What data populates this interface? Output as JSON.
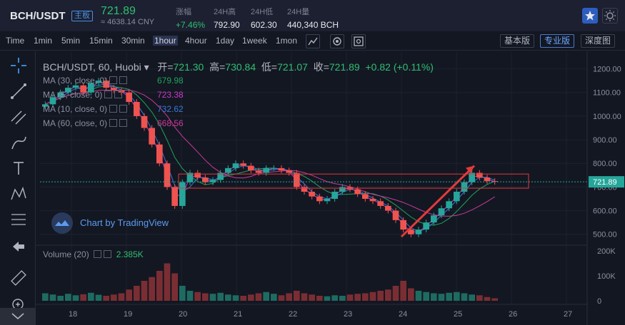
{
  "header": {
    "pair": "BCH/USDT",
    "board_label": "主板",
    "price": "721.89",
    "price_cny": "≈ 4638.14 CNY",
    "stats": [
      {
        "label": "涨幅",
        "value": "+7.46%",
        "up": true
      },
      {
        "label": "24H高",
        "value": "792.90",
        "up": false
      },
      {
        "label": "24H低",
        "value": "602.30",
        "up": false
      },
      {
        "label": "24H量",
        "value": "440,340 BCH",
        "up": false
      }
    ]
  },
  "toolbar": {
    "intervals": [
      "Time",
      "1min",
      "5min",
      "15min",
      "30min",
      "1hour",
      "4hour",
      "1day",
      "1week",
      "1mon"
    ],
    "active_interval": "1hour",
    "versions": [
      "基本版",
      "专业版",
      "深度图"
    ],
    "active_version": "专业版"
  },
  "legend": {
    "symbol": "BCH/USDT, 60, Huobi",
    "open_label": "开",
    "open": "721.30",
    "high_label": "高",
    "high": "730.84",
    "low_label": "低",
    "low": "721.07",
    "close_label": "收",
    "close": "721.89",
    "change": "+0.82 (+0.11%)",
    "ma": [
      {
        "label": "MA (30, close, 0)",
        "value": "679.98",
        "color": "#1fa35c"
      },
      {
        "label": "MA (5, close, 0)",
        "value": "723.38",
        "color": "#c93ac9"
      },
      {
        "label": "MA (10, close, 0)",
        "value": "732.62",
        "color": "#3a78d8"
      },
      {
        "label": "MA (60, close, 0)",
        "value": "668.56",
        "color": "#c93a9a"
      }
    ],
    "watermark": "Chart by TradingView",
    "volume_label": "Volume (20)",
    "volume_value": "2.385K"
  },
  "colors": {
    "up": "#26a69a",
    "down": "#ef5350",
    "accent": "#2d5ebf"
  },
  "chart_data": {
    "type": "candlestick",
    "x_ticks": [
      "18",
      "19",
      "20",
      "21",
      "22",
      "23",
      "24",
      "25",
      "26",
      "27"
    ],
    "y_ticks": [
      "1200.00",
      "1100.00",
      "1000.00",
      "900.00",
      "800.00",
      "700.00",
      "600.00",
      "500.00"
    ],
    "price_ylim": [
      460,
      1250
    ],
    "current_price_label": "721.89",
    "volume_ticks": [
      "200K",
      "100K",
      "0"
    ],
    "volume_ylim": [
      0,
      200000
    ],
    "close_series": [
      1050,
      1080,
      1100,
      1120,
      1130,
      1100,
      1140,
      1150,
      1120,
      1110,
      1100,
      1060,
      1000,
      950,
      880,
      800,
      700,
      620,
      720,
      760,
      740,
      720,
      730,
      760,
      780,
      800,
      790,
      770,
      760,
      780,
      780,
      770,
      760,
      700,
      680,
      660,
      640,
      650,
      680,
      700,
      690,
      670,
      650,
      640,
      620,
      600,
      560,
      520,
      500,
      520,
      550,
      580,
      610,
      640,
      680,
      720,
      760,
      740,
      725,
      722
    ],
    "volume_series": [
      30,
      25,
      20,
      28,
      22,
      26,
      32,
      24,
      20,
      25,
      30,
      45,
      60,
      80,
      95,
      120,
      150,
      110,
      60,
      40,
      35,
      30,
      28,
      32,
      25,
      22,
      20,
      25,
      30,
      35,
      28,
      22,
      30,
      40,
      30,
      25,
      20,
      18,
      22,
      20,
      25,
      28,
      30,
      35,
      40,
      45,
      60,
      80,
      50,
      40,
      35,
      30,
      28,
      32,
      35,
      30,
      25,
      22,
      15,
      10
    ],
    "annotations": [
      {
        "type": "rectangle",
        "price_top": 755,
        "price_bottom": 695
      },
      {
        "type": "arrow",
        "from_price": 490,
        "to_price": 790
      }
    ]
  }
}
